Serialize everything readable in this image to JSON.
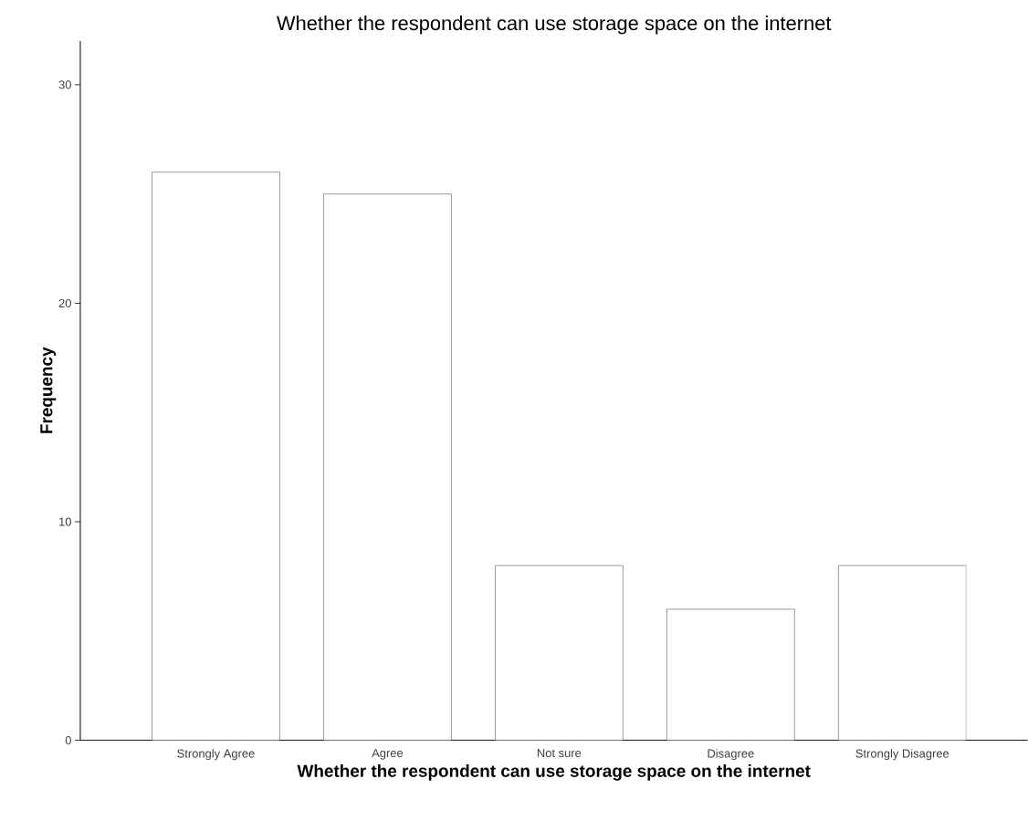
{
  "chart_data": {
    "type": "bar",
    "title": "Whether the respondent can use storage space on the internet",
    "xlabel": "Whether the respondent can use storage space on the internet",
    "ylabel": "Frequency",
    "categories": [
      "Strongly Agree",
      "Agree",
      "Not sure",
      "Disagree",
      "Strongly Disagree"
    ],
    "values": [
      26,
      25,
      8,
      6,
      8
    ],
    "color": "#ffffff",
    "ylim": [
      0,
      32
    ],
    "yticks": [
      0,
      10,
      20,
      30
    ],
    "grid": false
  }
}
